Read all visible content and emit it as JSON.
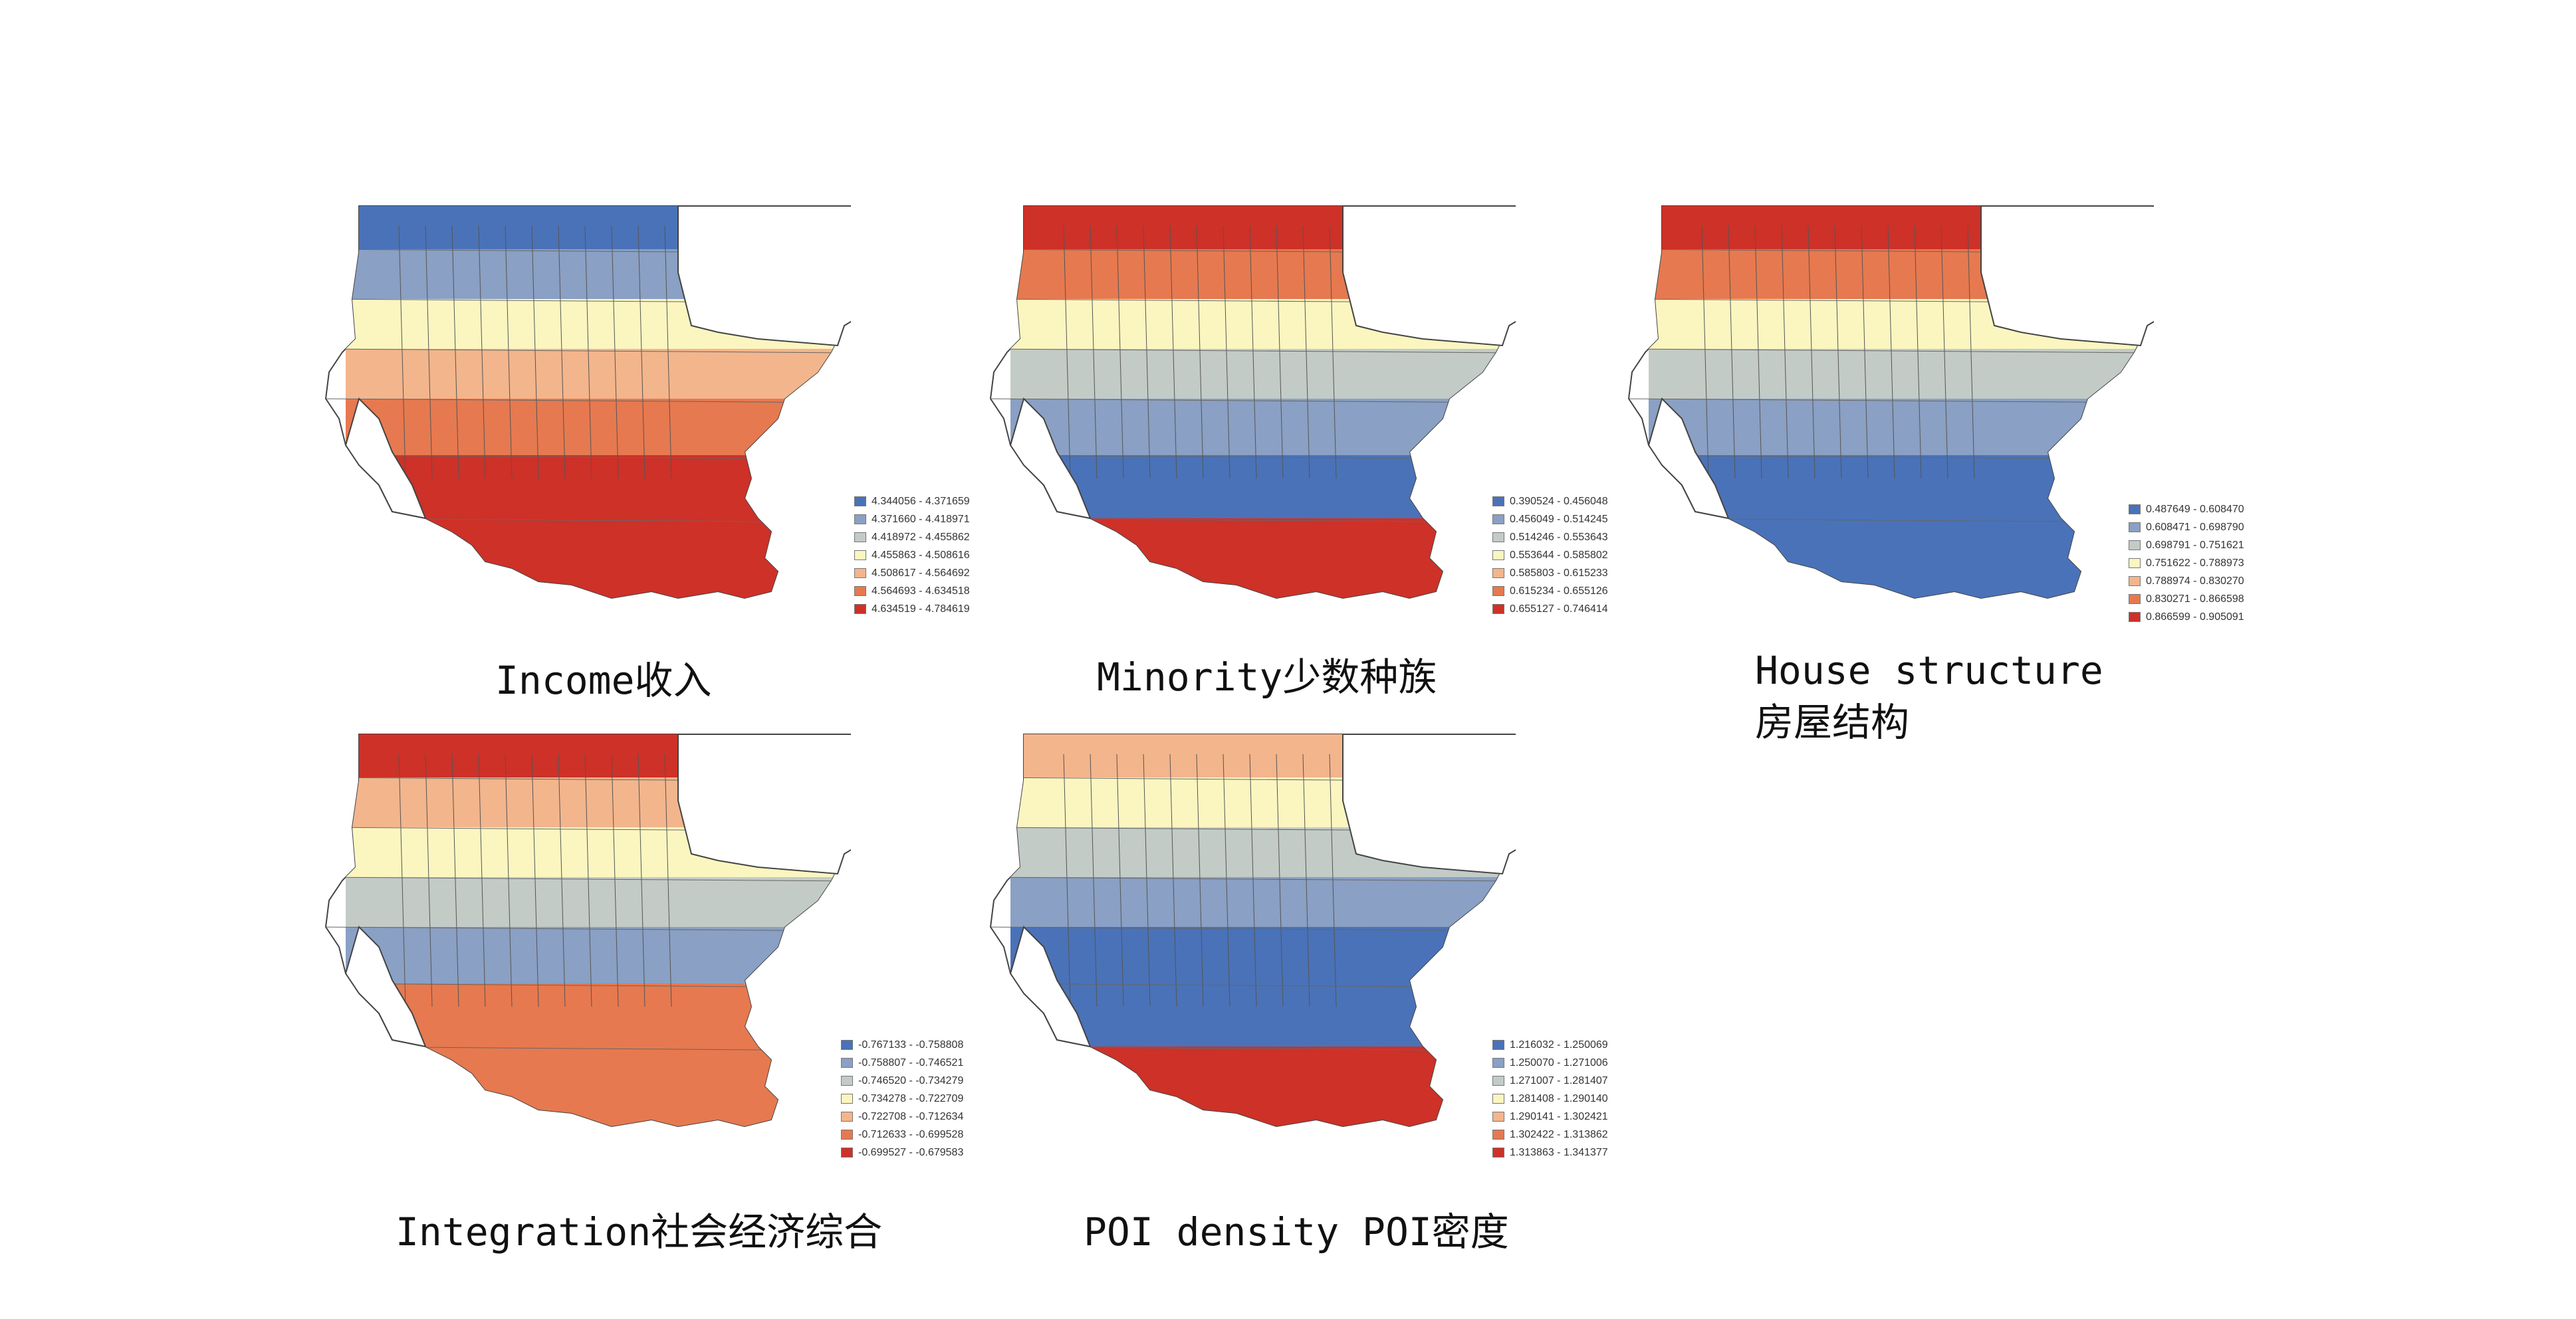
{
  "colors": {
    "c1": "#4a72b8",
    "c2": "#8aa0c4",
    "c3": "#c3cbc6",
    "c4": "#fbf6c0",
    "c5": "#f3b58c",
    "c6": "#e6794f",
    "c7": "#cd3128"
  },
  "panels": [
    {
      "id": "income",
      "caption": "Income收入",
      "legend": [
        "4.344056 - 4.371659",
        "4.371660 - 4.418971",
        "4.418972 - 4.455862",
        "4.455863 - 4.508616",
        "4.508617 - 4.564692",
        "4.564693 - 4.634518",
        "4.634519 - 4.784619"
      ],
      "bands": [
        "c1",
        "c2",
        "c4",
        "c5",
        "c6",
        "c7",
        "c7"
      ]
    },
    {
      "id": "minority",
      "caption": "Minority少数种族",
      "legend": [
        "0.390524 - 0.456048",
        "0.456049 - 0.514245",
        "0.514246 - 0.553643",
        "0.553644 - 0.585802",
        "0.585803 - 0.615233",
        "0.615234 - 0.655126",
        "0.655127 - 0.746414"
      ],
      "bands": [
        "c7",
        "c6",
        "c4",
        "c3",
        "c2",
        "c1",
        "c7"
      ]
    },
    {
      "id": "house-structure",
      "caption": [
        "House structure",
        "房屋结构"
      ],
      "legend": [
        "0.487649 - 0.608470",
        "0.608471 - 0.698790",
        "0.698791 - 0.751621",
        "0.751622 - 0.788973",
        "0.788974 - 0.830270",
        "0.830271 - 0.866598",
        "0.866599 - 0.905091"
      ],
      "bands": [
        "c7",
        "c6",
        "c4",
        "c3",
        "c2",
        "c1",
        "c1"
      ]
    },
    {
      "id": "integration",
      "caption": "Integration社会经济综合",
      "legend": [
        "-0.767133 - -0.758808",
        "-0.758807 - -0.746521",
        "-0.746520 - -0.734279",
        "-0.734278 - -0.722709",
        "-0.722708 - -0.712634",
        "-0.712633 - -0.699528",
        "-0.699527 - -0.679583"
      ],
      "bands": [
        "c7",
        "c5",
        "c4",
        "c3",
        "c2",
        "c6",
        "c6"
      ]
    },
    {
      "id": "poi-density",
      "caption": "POI density POI密度",
      "legend": [
        "1.216032 - 1.250069",
        "1.250070 - 1.271006",
        "1.271007 - 1.281407",
        "1.281408 - 1.290140",
        "1.290141 - 1.302421",
        "1.302422 - 1.313862",
        "1.313863 - 1.341377"
      ],
      "bands": [
        "c5",
        "c4",
        "c3",
        "c2",
        "c1",
        "c1",
        "c7"
      ]
    }
  ]
}
